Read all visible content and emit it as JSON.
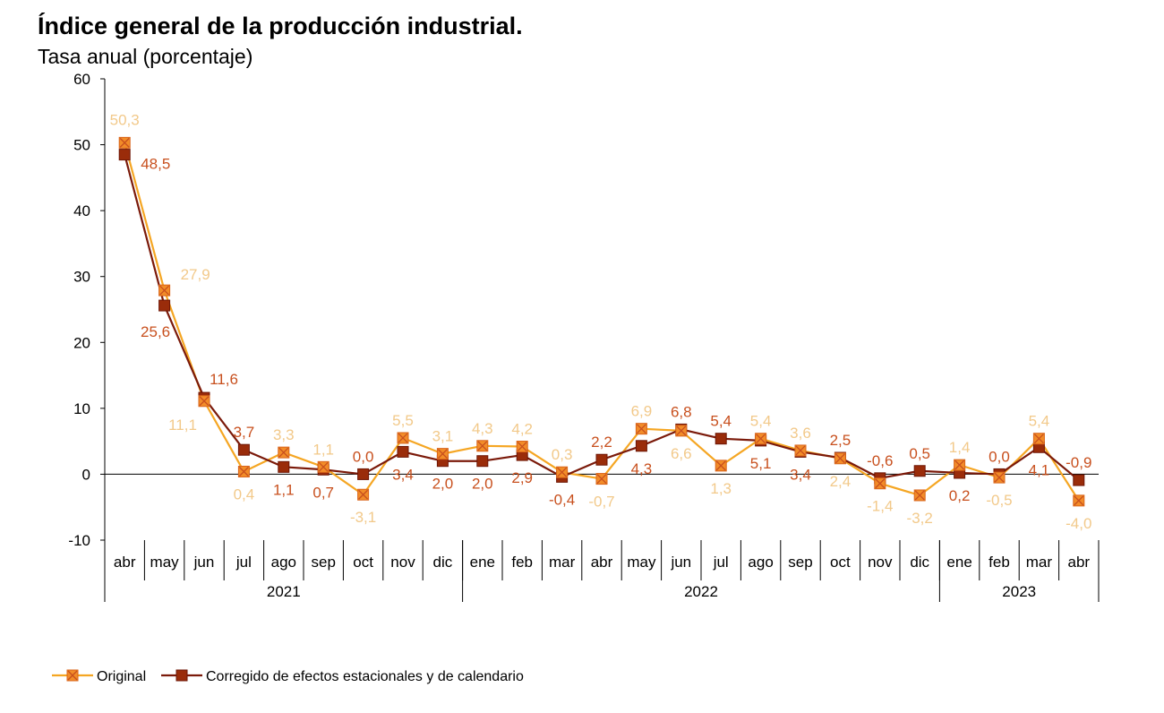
{
  "chart_data": {
    "type": "line",
    "title": "Índice general de la producción industrial.",
    "subtitle": "Tasa anual (porcentaje)",
    "ylim": [
      -10,
      60
    ],
    "yticks": [
      -10,
      0,
      10,
      20,
      30,
      40,
      50,
      60
    ],
    "ytick_labels": [
      "-10",
      "0",
      "10",
      "20",
      "30",
      "40",
      "50",
      "60"
    ],
    "categories": [
      "abr",
      "may",
      "jun",
      "jul",
      "ago",
      "sep",
      "oct",
      "nov",
      "dic",
      "ene",
      "feb",
      "mar",
      "abr",
      "may",
      "jun",
      "jul",
      "ago",
      "sep",
      "oct",
      "nov",
      "dic",
      "ene",
      "feb",
      "mar",
      "abr"
    ],
    "years": [
      {
        "label": "2021",
        "start": 0,
        "end": 8
      },
      {
        "label": "2022",
        "start": 9,
        "end": 20
      },
      {
        "label": "2023",
        "start": 21,
        "end": 24
      }
    ],
    "series": [
      {
        "name": "Original",
        "color": "#f5a623",
        "marker_color": "#e8691e",
        "label_color": "#f2c98a",
        "values": [
          50.3,
          27.9,
          11.1,
          0.4,
          3.3,
          1.1,
          -3.1,
          5.5,
          3.1,
          4.3,
          4.2,
          0.3,
          -0.7,
          6.9,
          6.6,
          1.3,
          5.4,
          3.6,
          2.4,
          -1.4,
          -3.2,
          1.4,
          -0.5,
          5.4,
          -4.0
        ],
        "labels": [
          "50,3",
          "27,9",
          "11,1",
          "0,4",
          "3,3",
          "1,1",
          "-3,1",
          "5,5",
          "3,1",
          "4,3",
          "4,2",
          "0,3",
          "-0,7",
          "6,9",
          "6,6",
          "1,3",
          "5,4",
          "3,6",
          "2,4",
          "-1,4",
          "-3,2",
          "1,4",
          "-0,5",
          "5,4",
          "-4,0"
        ]
      },
      {
        "name": "Corregido de efectos estacionales y de calendario",
        "color": "#7b1a0a",
        "marker_color": "#9a2c0a",
        "label_color": "#c8501e",
        "values": [
          48.5,
          25.6,
          11.6,
          3.7,
          1.1,
          0.7,
          0.0,
          3.4,
          2.0,
          2.0,
          2.9,
          -0.4,
          2.2,
          4.3,
          6.8,
          5.4,
          5.1,
          3.4,
          2.5,
          -0.6,
          0.5,
          0.2,
          0.0,
          4.1,
          -0.9
        ],
        "labels": [
          "48,5",
          "25,6",
          "11,6",
          "3,7",
          "1,1",
          "0,7",
          "0,0",
          "3,4",
          "2,0",
          "2,0",
          "2,9",
          "-0,4",
          "2,2",
          "4,3",
          "6,8",
          "5,4",
          "5,1",
          "3,4",
          "2,5",
          "-0,6",
          "0,5",
          "0,2",
          "0,0",
          "4,1",
          "-0,9"
        ]
      }
    ],
    "legend": {
      "position": "bottom-left",
      "entries": [
        "Original",
        "Corregido de efectos estacionales y de calendario"
      ]
    }
  }
}
